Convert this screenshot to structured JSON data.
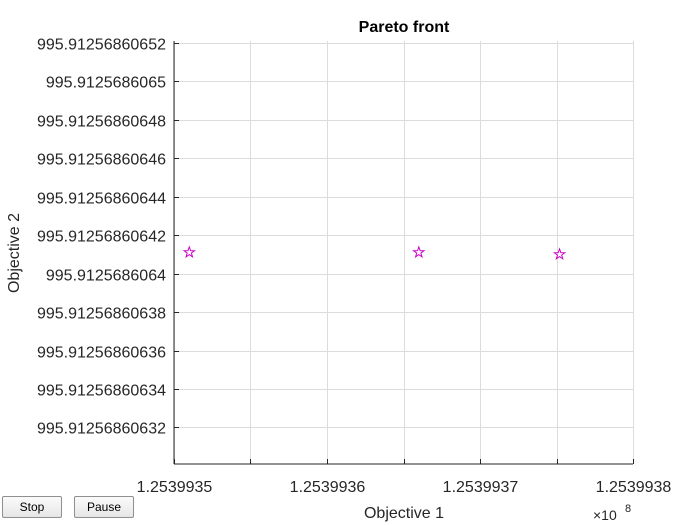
{
  "controls": {
    "stop_label": "Stop",
    "pause_label": "Pause"
  },
  "chart_data": {
    "type": "scatter",
    "title": "Pareto front",
    "xlabel": "Objective 1",
    "ylabel": "Objective 2",
    "x_exponent_label": "×10",
    "x_exponent_power": "8",
    "xlim": [
      1.2539935,
      1.2539938
    ],
    "ylim": [
      995.912568606301,
      995.912568606521
    ],
    "x_ticks": [
      1.2539935,
      1.25399355,
      1.2539936,
      1.25399365,
      1.2539937,
      1.25399375,
      1.2539938
    ],
    "x_tick_labels": [
      "1.2539935",
      "",
      "1.2539936",
      "",
      "1.2539937",
      "",
      "1.2539938"
    ],
    "y_ticks": [
      995.91256860632,
      995.91256860634,
      995.91256860636,
      995.91256860638,
      995.9125686064,
      995.91256860642,
      995.91256860644,
      995.91256860646,
      995.91256860648,
      995.9125686065,
      995.91256860652
    ],
    "y_tick_labels": [
      "995.91256860632",
      "995.91256860634",
      "995.91256860636",
      "995.91256860638",
      "995.9125686064",
      "995.91256860642",
      "995.91256860644",
      "995.91256860646",
      "995.91256860648",
      "995.9125686065",
      "995.91256860652"
    ],
    "grid": true,
    "marker": "pentagram",
    "marker_color": "#cc00cc",
    "series": [
      {
        "x": [
          1.25399351,
          1.25399366,
          1.253993752
        ],
        "y": [
          995.912568606411,
          995.912568606411,
          995.91256860641
        ]
      }
    ]
  }
}
